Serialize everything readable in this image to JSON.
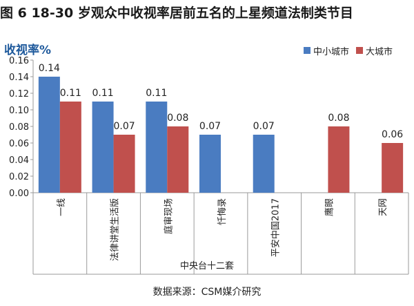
{
  "title": "图 6 18-30 岁观众中收视率居前五名的上星频道法制类节目",
  "source": "数据来源：CSM媒介研究",
  "colors": {
    "series1": "#4a7cc1",
    "series2": "#c0504d"
  },
  "chart_data": {
    "type": "bar",
    "ylabel": "收视率%",
    "xlabel": "中央台十二套",
    "ylim": [
      0,
      0.16
    ],
    "yticks": [
      "0.00",
      "0.02",
      "0.04",
      "0.06",
      "0.08",
      "0.10",
      "0.12",
      "0.14",
      "0.16"
    ],
    "legend_position": "top-right",
    "grid": false,
    "categories": [
      "一线",
      "法律讲堂生活版",
      "庭审现场",
      "忏悔录",
      "平安中国2017",
      "鹰眼",
      "天网"
    ],
    "series": [
      {
        "name": "中小城市",
        "values": [
          0.14,
          0.11,
          0.11,
          0.07,
          0.07,
          null,
          null
        ],
        "labels": [
          "0.14",
          "0.11",
          "0.11",
          "0.07",
          "0.07",
          null,
          null
        ]
      },
      {
        "name": "大城市",
        "values": [
          0.11,
          0.07,
          0.08,
          null,
          null,
          0.08,
          0.06
        ],
        "labels": [
          "0.11",
          "0.07",
          "0.08",
          null,
          null,
          "0.08",
          "0.06"
        ]
      }
    ]
  }
}
